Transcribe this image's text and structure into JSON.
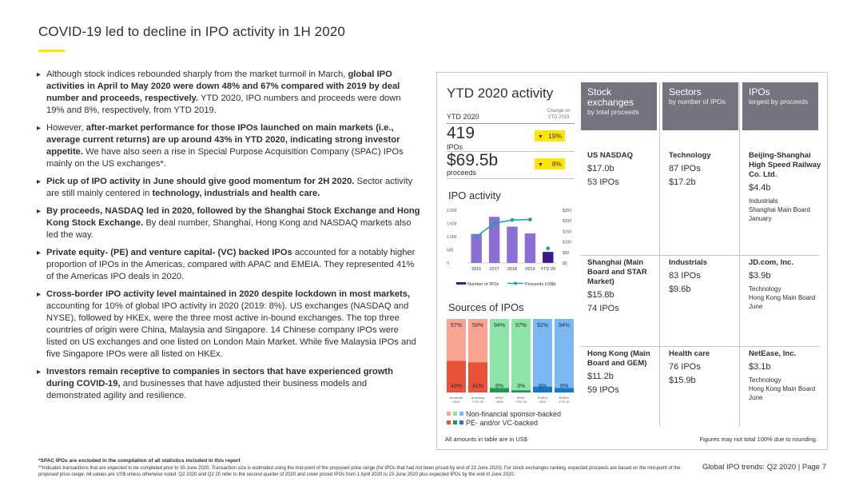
{
  "page": {
    "title": "COVID-19 led to decline in IPO activity in 1H 2020"
  },
  "bullets": [
    [
      {
        "t": "Although stock indices rebounded sharply from the market turmoil in March, ",
        "b": false
      },
      {
        "t": "global IPO activities in April to May 2020 were down 48% and 67% compared with 2019 by deal number and proceeds, respectively.",
        "b": true
      },
      {
        "t": " YTD 2020, IPO numbers and proceeds were down 19% and 8%, respectively, from YTD 2019.",
        "b": false
      }
    ],
    [
      {
        "t": "However, ",
        "b": false
      },
      {
        "t": "after-market performance for those IPOs launched on main markets (i.e., average current returns) are up around 43% in YTD 2020, indicating strong investor appetite.",
        "b": true
      },
      {
        "t": " We have also seen a rise in Special Purpose Acquisition Company (SPAC) IPOs mainly on the US exchanges*.",
        "b": false
      }
    ],
    [
      {
        "t": "Pick up of IPO activity in June should give good momentum for 2H 2020.",
        "b": true
      },
      {
        "t": " Sector activity are still mainly centered in ",
        "b": false
      },
      {
        "t": "technology, industrials and health care.",
        "b": true
      }
    ],
    [
      {
        "t": "By proceeds, NASDAQ led in 2020, followed by the Shanghai Stock Exchange and Hong Kong Stock Exchange.",
        "b": true
      },
      {
        "t": " By deal number, Shanghai, Hong Kong and NASDAQ markets also led the way.",
        "b": false
      }
    ],
    [
      {
        "t": "Private equity- (PE) and venture capital- (VC) backed IPOs",
        "b": true
      },
      {
        "t": " accounted for a notably higher proportion of IPOs in the Americas, compared with APAC and EMEIA. They represented 41% of the Americas IPO deals in 2020.",
        "b": false
      }
    ],
    [
      {
        "t": "Cross-border IPO activity level maintained in 2020 despite lockdown in most markets,",
        "b": true
      },
      {
        "t": " accounting for 10% of global IPO activity in 2020 (2019: 8%). US exchanges (NASDAQ and NYSE), followed by HKEx, were the three most active in-bound exchanges. The top three countries of origin were China, Malaysia and Singapore. 14 Chinese company IPOs were listed on US exchanges and one listed on London Main Market. While five Malaysia IPOs and five Singapore IPOs were all listed on HKEx.",
        "b": false
      }
    ],
    [
      {
        "t": "Investors remain receptive to companies in sectors that have experienced growth during COVID-19,",
        "b": true
      },
      {
        "t": " and businesses that have adjusted their business models and demonstrated agility and resilience.",
        "b": false
      }
    ]
  ],
  "ytd": {
    "title": "YTD 2020 activity",
    "label": "YTD 2020",
    "change_label": "Change on\nYTD 2019",
    "ipos_value": "419",
    "ipos_unit": "IPOs",
    "ipos_change": "19%",
    "proceeds_value": "$69.5b",
    "proceeds_unit": "proceeds",
    "proceeds_change": "8%",
    "down_arrow": "▼"
  },
  "colors": {
    "yellow": "#ffe600",
    "grey_header": "#747480",
    "bar_purple": "#8c6fd6",
    "bar_dark": "#3d1a8c",
    "line_teal": "#1aa5a5",
    "src_salmon_light": "#f9a392",
    "src_salmon_dark": "#e8513a",
    "src_green_light": "#8ee3a8",
    "src_green_dark": "#199a4d",
    "src_blue_light": "#7ab8f5",
    "src_blue_dark": "#1777cf"
  },
  "chart_data": [
    {
      "type": "bar",
      "title": "IPO activity",
      "categories": [
        "2016",
        "2017",
        "2018",
        "2019",
        "YTD 20"
      ],
      "series": [
        {
          "name": "Number of IPOs",
          "values": [
            1100,
            1750,
            1380,
            1120,
            419
          ],
          "axis": "left"
        },
        {
          "name": "Proceeds US$b",
          "values": [
            125,
            188,
            204,
            206,
            69.5
          ],
          "axis": "right",
          "render": "line"
        }
      ],
      "y_left_ticks": [
        "2,000",
        "1,500",
        "1,000",
        "500",
        "0"
      ],
      "y_left_range": [
        0,
        2000
      ],
      "y_right_ticks": [
        "$250",
        "$200",
        "$150",
        "$100",
        "$50",
        "$0"
      ],
      "y_right_range": [
        0,
        250
      ],
      "legend": [
        "Number of IPOs",
        "Proceeds US$b"
      ]
    },
    {
      "type": "bar",
      "stacked": true,
      "title": "Sources of IPOs",
      "categories": [
        "Americas 2019",
        "Americas YTD 20",
        "APAC 2019",
        "APAC YTD 20",
        "EMEIA 2019",
        "EMEIA YTD 20"
      ],
      "category_lines": [
        [
          "Americas",
          "2019"
        ],
        [
          "Americas",
          "YTD 20"
        ],
        [
          "APAC",
          "2019"
        ],
        [
          "APAC",
          "YTD 20"
        ],
        [
          "EMEIA",
          "2019"
        ],
        [
          "EMEIA",
          "YTD 20"
        ]
      ],
      "series": [
        {
          "name": "Non-financial sponsor-backed",
          "values": [
            57,
            59,
            94,
            97,
            92,
            94
          ],
          "labels": [
            "57%",
            "59%",
            "94%",
            "97%",
            "92%",
            "94%"
          ]
        },
        {
          "name": "PE- and/or VC-backed",
          "values": [
            43,
            41,
            6,
            3,
            8,
            6
          ],
          "labels": [
            "43%",
            "41%",
            "6%",
            "3%",
            "8%",
            "6%"
          ]
        }
      ],
      "legend": [
        "Non-financial sponsor-backed",
        "PE- and/or VC-backed"
      ]
    }
  ],
  "table": {
    "columns": [
      {
        "h1": "Stock exchanges",
        "h2": "by total proceeds"
      },
      {
        "h1": "Sectors",
        "h2": "by number of IPOs"
      },
      {
        "h1": "IPOs",
        "h2": "largest by proceeds"
      }
    ],
    "rows": [
      [
        {
          "name": "US NASDAQ",
          "v1": "$17.0b",
          "v2": "53 IPOs"
        },
        {
          "name": "Technology",
          "v1": "87 IPOs",
          "v2": "$17.2b"
        },
        {
          "name": "Beijing-Shanghai High Speed Railway Co. Ltd.",
          "v1": "$4.4b",
          "meta": [
            "Industrials",
            "Shanghai Main Board",
            "January"
          ]
        }
      ],
      [
        {
          "name": "Shanghai (Main Board and STAR Market)",
          "v1": "$15.8b",
          "v2": "74 IPOs"
        },
        {
          "name": "Industrials",
          "v1": "83 IPOs",
          "v2": "$9.6b"
        },
        {
          "name": "JD.com, Inc.",
          "v1": "$3.9b",
          "meta": [
            "Technology",
            "Hong Kong Main Board",
            "June"
          ]
        }
      ],
      [
        {
          "name": "Hong Kong (Main Board and GEM)",
          "v1": "$11.2b",
          "v2": "59 IPOs"
        },
        {
          "name": "Health care",
          "v1": "76 IPOs",
          "v2": "$15.9b"
        },
        {
          "name": "NetEase, Inc.",
          "v1": "$3.1b",
          "meta": [
            "Technology",
            "Hong Kong Main Board",
            "June"
          ]
        }
      ]
    ]
  },
  "panel_notes": {
    "left": "All amounts in table are in US$",
    "right": "Figures may not total 100% due to rounding."
  },
  "footer": {
    "note1": "*SPAC IPOs are excluded in the compilation of all statistics included in this report",
    "note2": "**Indicates transactions that are expected to be completed prior to 30 June 2020. Transaction size is estimated using the mid-point of the proposed price range (for IPOs that had not been priced by end of 23 June 2020). For stock exchanges ranking, expected proceeds are based on the mid-point of the proposed price range. All values are US$ unless otherwise noted. Q2 2020 and Q2 20 refer to the second quarter of 2020 and cover priced IPOs from 1 April 2020 to 23 June 2020 plus expected IPOs by the end of June 2020.",
    "page_label": "Global IPO trends: Q2 2020  |  Page 7"
  }
}
